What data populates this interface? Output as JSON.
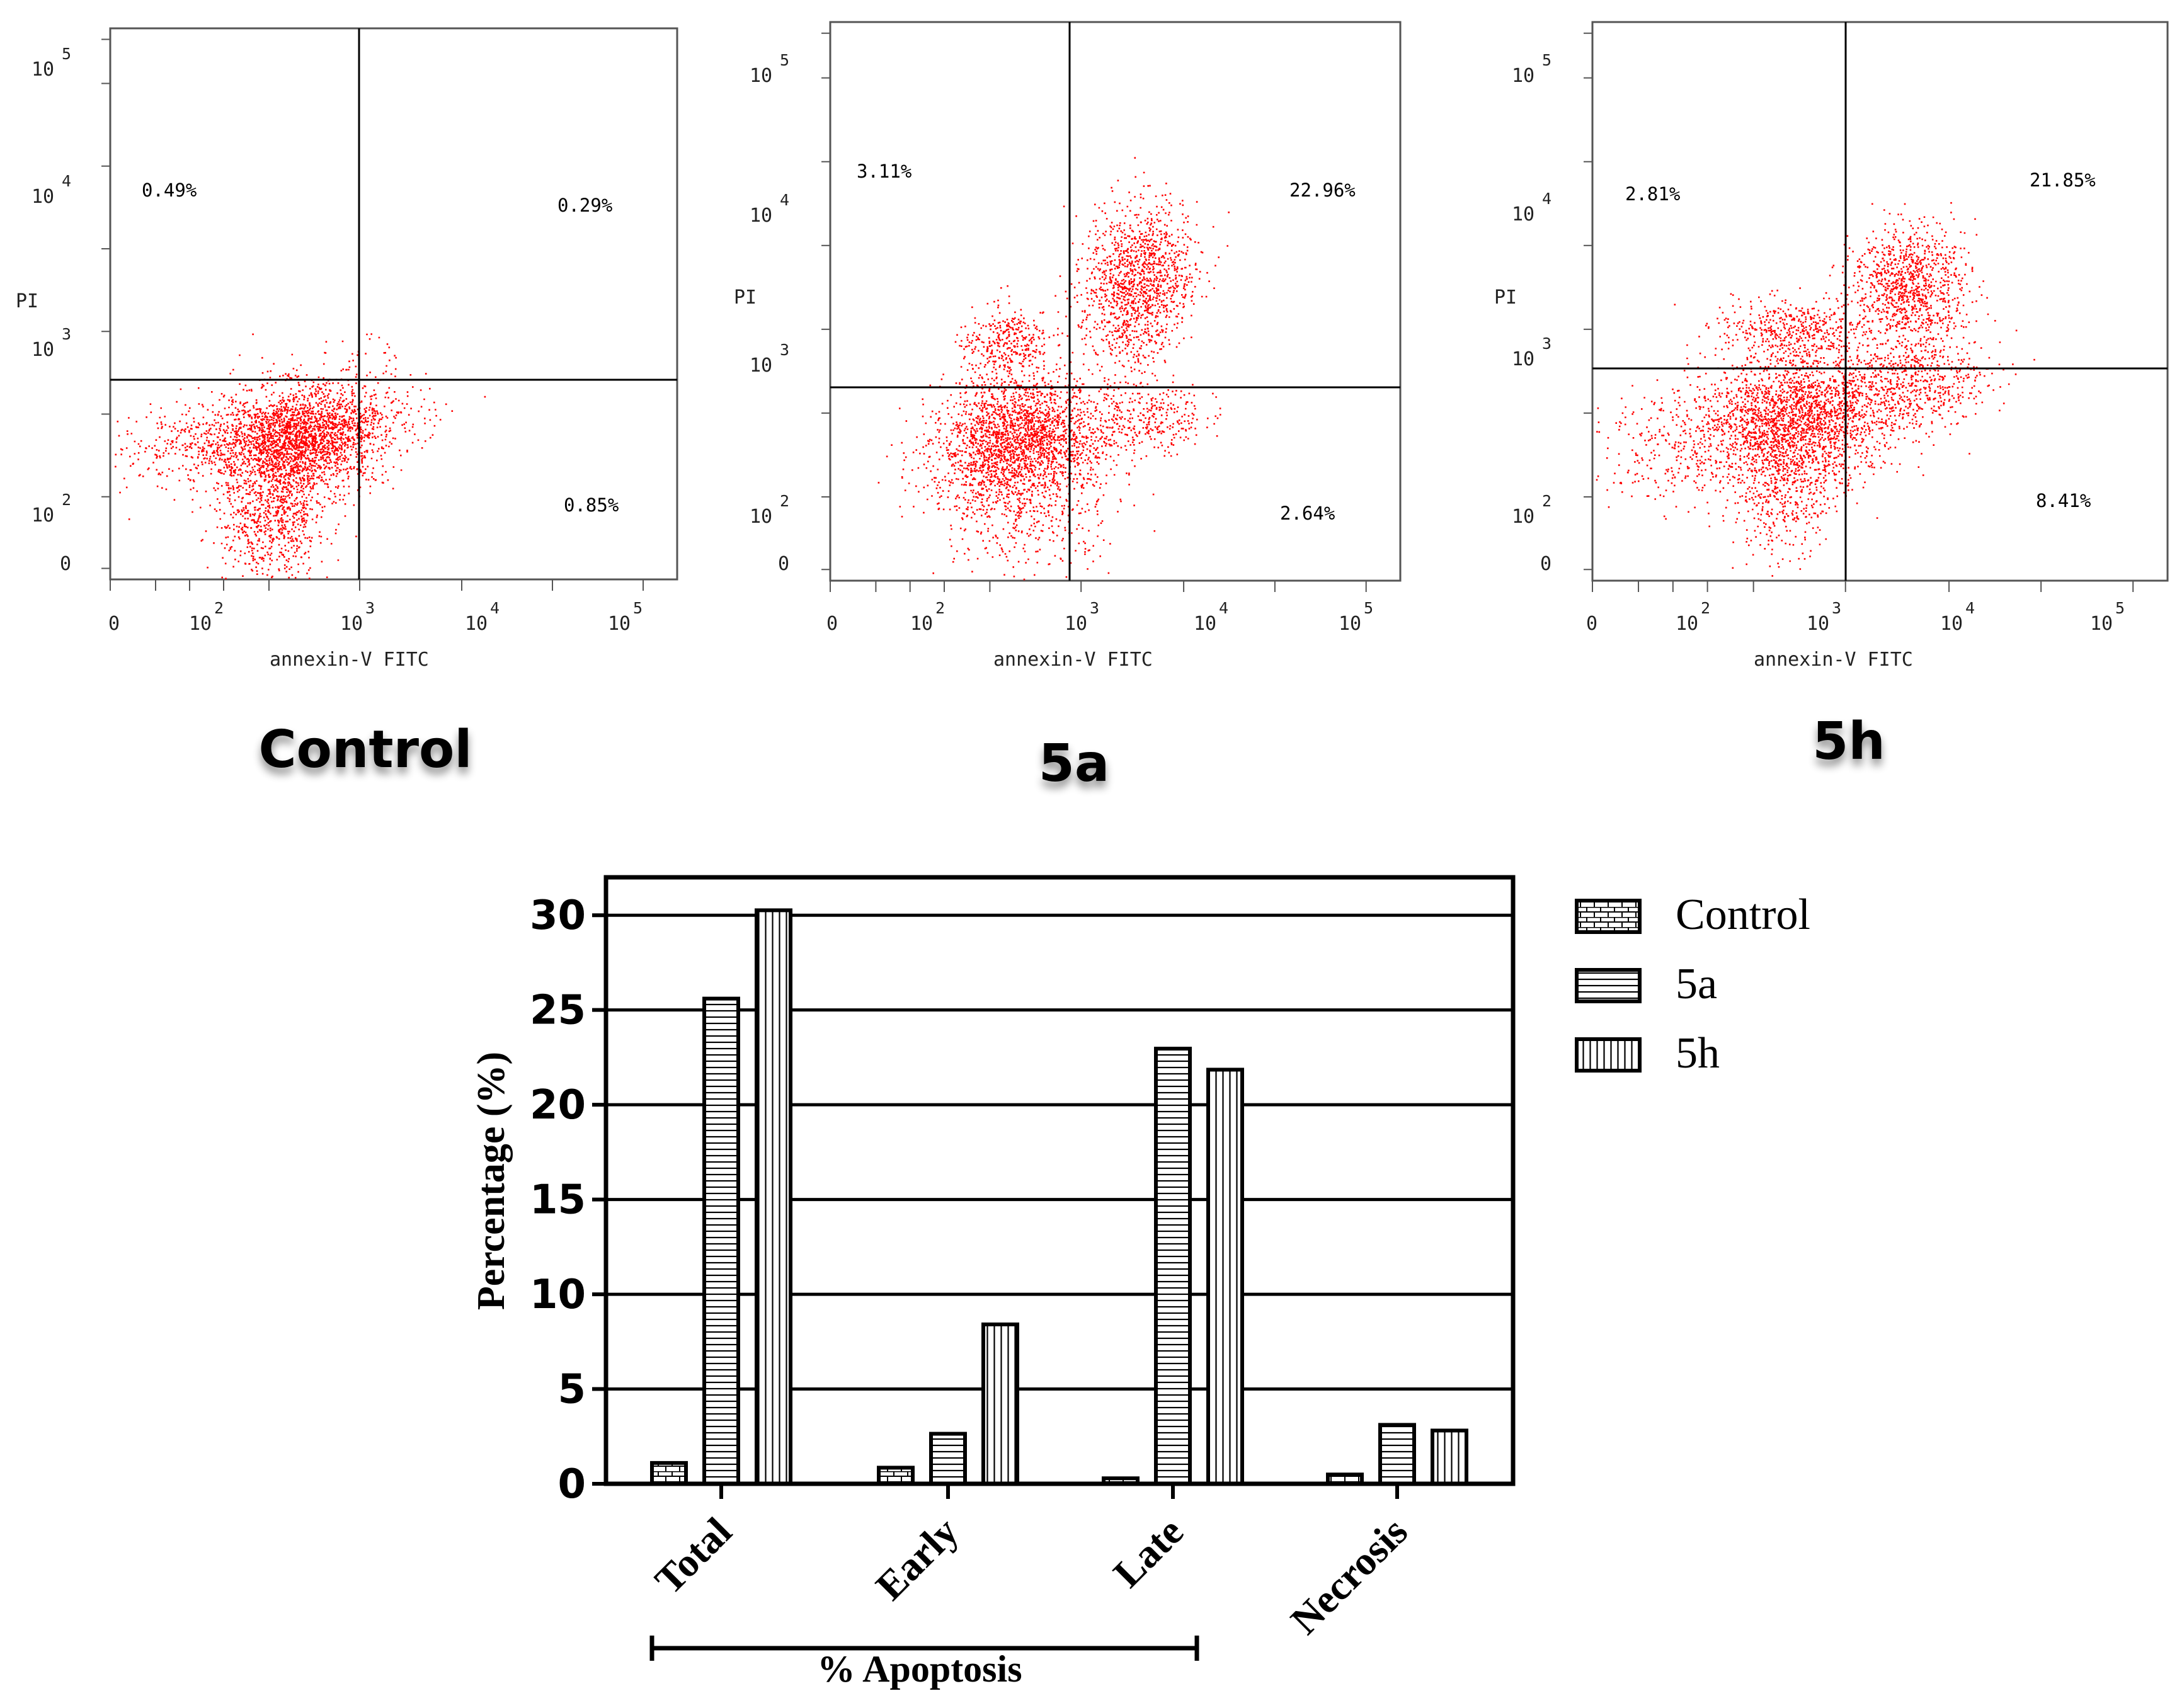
{
  "chart_data": [
    {
      "type": "scatter",
      "panel": "flow-cytometry",
      "caption": "Control",
      "xlabel": "annexin-V FITC",
      "ylabel": "PI",
      "x_ticks": [
        "0",
        "10",
        "10",
        "10",
        "10"
      ],
      "x_tick_exponents": [
        "",
        "2",
        "3",
        "4",
        "5"
      ],
      "y_ticks": [
        "0",
        "10",
        "10",
        "10",
        "10"
      ],
      "y_tick_exponents": [
        "",
        "2",
        "3",
        "4",
        "5"
      ],
      "quadrants": {
        "upper_left": "0.49%",
        "upper_right": "0.29%",
        "lower_right": "0.85%"
      },
      "events_color": "#ff0000"
    },
    {
      "type": "scatter",
      "panel": "flow-cytometry",
      "caption": "5a",
      "xlabel": "annexin-V FITC",
      "ylabel": "PI",
      "x_ticks": [
        "0",
        "10",
        "10",
        "10",
        "10"
      ],
      "x_tick_exponents": [
        "",
        "2",
        "3",
        "4",
        "5"
      ],
      "y_ticks": [
        "0",
        "10",
        "10",
        "10",
        "10"
      ],
      "y_tick_exponents": [
        "",
        "2",
        "3",
        "4",
        "5"
      ],
      "quadrants": {
        "upper_left": "3.11%",
        "upper_right": "22.96%",
        "lower_right": "2.64%"
      },
      "events_color": "#ff0000"
    },
    {
      "type": "scatter",
      "panel": "flow-cytometry",
      "caption": "5h",
      "xlabel": "annexin-V FITC",
      "ylabel": "PI",
      "x_ticks": [
        "0",
        "10",
        "10",
        "10",
        "10"
      ],
      "x_tick_exponents": [
        "",
        "2",
        "3",
        "4",
        "5"
      ],
      "y_ticks": [
        "0",
        "10",
        "10",
        "10",
        "10"
      ],
      "y_tick_exponents": [
        "",
        "2",
        "3",
        "4",
        "5"
      ],
      "quadrants": {
        "upper_left": "2.81%",
        "upper_right": "21.85%",
        "lower_right": "8.41%"
      },
      "events_color": "#ff0000"
    },
    {
      "type": "bar",
      "ylabel": "Percentage (%)",
      "ylim": [
        0,
        32
      ],
      "y_ticks": [
        0,
        5,
        10,
        15,
        20,
        25,
        30
      ],
      "grid": true,
      "categories": [
        "Total",
        "Early",
        "Late",
        "Necrosis"
      ],
      "group_bracket_label": "% Apoptosis",
      "legend_position": "right",
      "series": [
        {
          "name": "Control",
          "pattern": "brick",
          "values": [
            1.1,
            0.85,
            0.29,
            0.49
          ]
        },
        {
          "name": "5a",
          "pattern": "horizontal",
          "values": [
            25.6,
            2.64,
            22.96,
            3.11
          ]
        },
        {
          "name": "5h",
          "pattern": "vertical",
          "values": [
            30.26,
            8.41,
            21.85,
            2.81
          ]
        }
      ]
    }
  ]
}
